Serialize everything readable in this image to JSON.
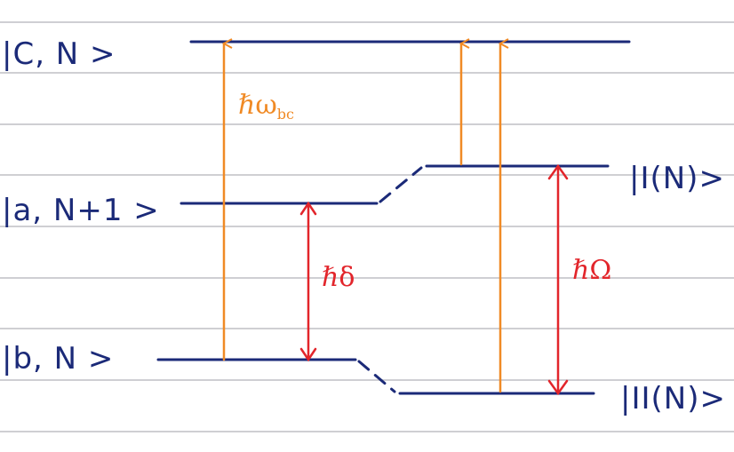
{
  "colors": {
    "level": "#1b2a78",
    "ruling": "#cfcfd3",
    "orange": "#f08a25",
    "red": "#e2252b",
    "paper": "#ffffff"
  },
  "labels": {
    "c_state": "|C, N >",
    "a_state": "|a, N+1 >",
    "b_state": "|b, N >",
    "state_I": "|I(N)>",
    "state_II": "|II(N)>"
  },
  "annotations": {
    "omega_bc": "ℏω",
    "omega_bc_sub": "bc",
    "delta": "ℏδ",
    "Omega": "ℏΩ"
  }
}
